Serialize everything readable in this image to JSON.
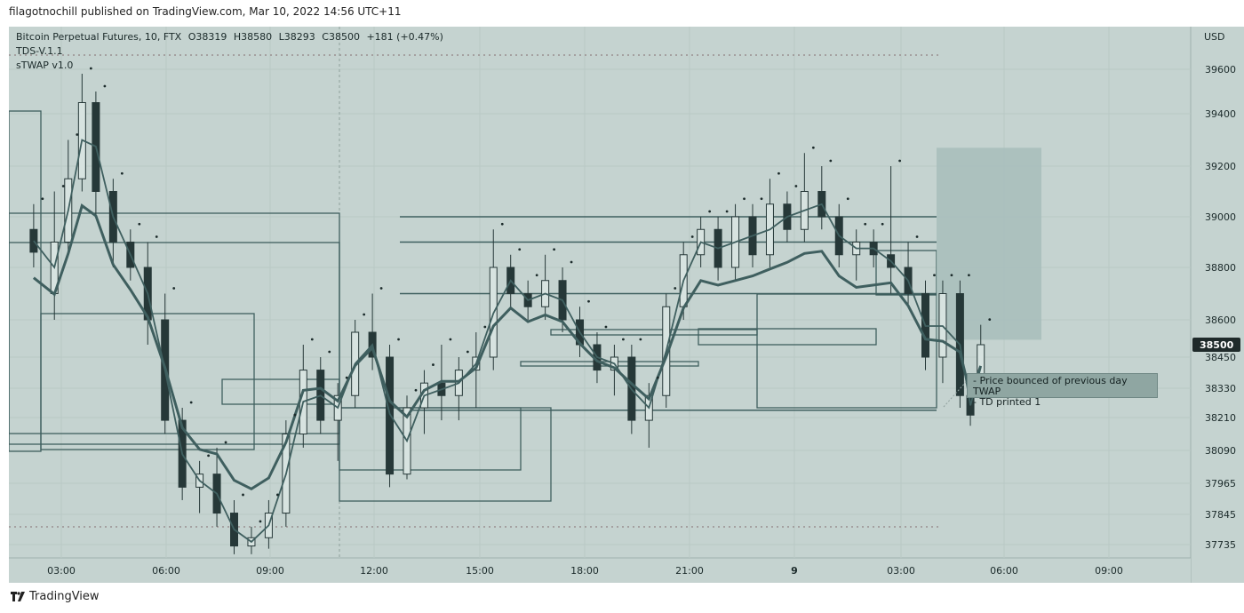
{
  "header": {
    "publisher": "filagotnochill published on TradingView.com, Mar 10, 2022 14:56 UTC+11"
  },
  "legend": {
    "symbol": "Bitcoin Perpetual Futures, 10, FTX",
    "o": "O38319",
    "h": "H38580",
    "l": "L38293",
    "c": "C38500",
    "change": "+181 (+0.47%)",
    "indicator1": "TDS-V.1.1",
    "indicator2": "sTWAP v1.0"
  },
  "price_axis": {
    "currency": "USD",
    "ticks": [
      "39600",
      "39400",
      "39200",
      "39000",
      "38800",
      "38600",
      "38450",
      "38330",
      "38210",
      "38090",
      "37965",
      "37845",
      "37735"
    ],
    "current_price": "38500",
    "current_price_color": "#1f2a2a"
  },
  "time_axis": {
    "ticks": [
      "03:00",
      "06:00",
      "09:00",
      "12:00",
      "15:00",
      "18:00",
      "21:00",
      "9",
      "03:00",
      "06:00",
      "09:00"
    ]
  },
  "annotation": {
    "line1": "- Price bounced of previous day TWAP",
    "line2": "- TD printed 1"
  },
  "footer": {
    "brand": "TradingView"
  },
  "colors": {
    "background": "#c5d3d0",
    "candle": "#263838",
    "twap_line": "#3f5f5f",
    "box_fill": "#a8bfbb"
  },
  "chart_data": {
    "type": "candlestick",
    "interval": "10",
    "ylim": [
      37680,
      39720
    ],
    "x_range_hours": [
      0,
      31
    ],
    "price_scale": "non-linear",
    "candles_approx": [
      {
        "t": 0.2,
        "o": 38950,
        "h": 39050,
        "l": 38800,
        "c": 38860
      },
      {
        "t": 0.8,
        "o": 38700,
        "h": 39100,
        "l": 38600,
        "c": 38900
      },
      {
        "t": 1.2,
        "o": 38900,
        "h": 39300,
        "l": 38850,
        "c": 39150
      },
      {
        "t": 1.6,
        "o": 39150,
        "h": 39580,
        "l": 39100,
        "c": 39450
      },
      {
        "t": 2.0,
        "o": 39450,
        "h": 39500,
        "l": 39000,
        "c": 39100
      },
      {
        "t": 2.5,
        "o": 39100,
        "h": 39150,
        "l": 38800,
        "c": 38900
      },
      {
        "t": 3.0,
        "o": 38900,
        "h": 38950,
        "l": 38750,
        "c": 38800
      },
      {
        "t": 3.5,
        "o": 38800,
        "h": 38900,
        "l": 38500,
        "c": 38600
      },
      {
        "t": 4.0,
        "o": 38600,
        "h": 38700,
        "l": 38150,
        "c": 38200
      },
      {
        "t": 4.5,
        "o": 38200,
        "h": 38250,
        "l": 37900,
        "c": 37950
      },
      {
        "t": 5.0,
        "o": 37950,
        "h": 38050,
        "l": 37850,
        "c": 38000
      },
      {
        "t": 5.5,
        "o": 38000,
        "h": 38100,
        "l": 37800,
        "c": 37850
      },
      {
        "t": 6.0,
        "o": 37850,
        "h": 37900,
        "l": 37700,
        "c": 37730
      },
      {
        "t": 6.5,
        "o": 37730,
        "h": 37800,
        "l": 37700,
        "c": 37760
      },
      {
        "t": 7.0,
        "o": 37760,
        "h": 37900,
        "l": 37720,
        "c": 37850
      },
      {
        "t": 7.5,
        "o": 37850,
        "h": 38200,
        "l": 37800,
        "c": 38150
      },
      {
        "t": 8.0,
        "o": 38150,
        "h": 38500,
        "l": 38100,
        "c": 38400
      },
      {
        "t": 8.5,
        "o": 38400,
        "h": 38450,
        "l": 38150,
        "c": 38200
      },
      {
        "t": 9.0,
        "o": 38200,
        "h": 38350,
        "l": 38050,
        "c": 38300
      },
      {
        "t": 9.5,
        "o": 38300,
        "h": 38600,
        "l": 38250,
        "c": 38550
      },
      {
        "t": 10.0,
        "o": 38550,
        "h": 38700,
        "l": 38400,
        "c": 38450
      },
      {
        "t": 10.5,
        "o": 38450,
        "h": 38500,
        "l": 37950,
        "c": 38000
      },
      {
        "t": 11.0,
        "o": 38000,
        "h": 38300,
        "l": 37980,
        "c": 38250
      },
      {
        "t": 11.5,
        "o": 38250,
        "h": 38400,
        "l": 38150,
        "c": 38350
      },
      {
        "t": 12.0,
        "o": 38350,
        "h": 38500,
        "l": 38200,
        "c": 38300
      },
      {
        "t": 12.5,
        "o": 38300,
        "h": 38450,
        "l": 38200,
        "c": 38400
      },
      {
        "t": 13.0,
        "o": 38400,
        "h": 38550,
        "l": 38250,
        "c": 38450
      },
      {
        "t": 13.5,
        "o": 38450,
        "h": 38950,
        "l": 38400,
        "c": 38800
      },
      {
        "t": 14.0,
        "o": 38800,
        "h": 38850,
        "l": 38650,
        "c": 38700
      },
      {
        "t": 14.5,
        "o": 38700,
        "h": 38750,
        "l": 38600,
        "c": 38650
      },
      {
        "t": 15.0,
        "o": 38650,
        "h": 38850,
        "l": 38600,
        "c": 38750
      },
      {
        "t": 15.5,
        "o": 38750,
        "h": 38800,
        "l": 38550,
        "c": 38600
      },
      {
        "t": 16.0,
        "o": 38600,
        "h": 38650,
        "l": 38450,
        "c": 38500
      },
      {
        "t": 16.5,
        "o": 38500,
        "h": 38550,
        "l": 38350,
        "c": 38400
      },
      {
        "t": 17.0,
        "o": 38400,
        "h": 38500,
        "l": 38300,
        "c": 38450
      },
      {
        "t": 17.5,
        "o": 38450,
        "h": 38500,
        "l": 38150,
        "c": 38200
      },
      {
        "t": 18.0,
        "o": 38200,
        "h": 38350,
        "l": 38100,
        "c": 38300
      },
      {
        "t": 18.5,
        "o": 38300,
        "h": 38700,
        "l": 38250,
        "c": 38650
      },
      {
        "t": 19.0,
        "o": 38650,
        "h": 38900,
        "l": 38600,
        "c": 38850
      },
      {
        "t": 19.5,
        "o": 38850,
        "h": 39000,
        "l": 38800,
        "c": 38950
      },
      {
        "t": 20.0,
        "o": 38950,
        "h": 39000,
        "l": 38750,
        "c": 38800
      },
      {
        "t": 20.5,
        "o": 38800,
        "h": 39050,
        "l": 38750,
        "c": 39000
      },
      {
        "t": 21.0,
        "o": 39000,
        "h": 39050,
        "l": 38800,
        "c": 38850
      },
      {
        "t": 21.5,
        "o": 38850,
        "h": 39150,
        "l": 38800,
        "c": 39050
      },
      {
        "t": 22.0,
        "o": 39050,
        "h": 39100,
        "l": 38900,
        "c": 38950
      },
      {
        "t": 22.5,
        "o": 38950,
        "h": 39250,
        "l": 38900,
        "c": 39100
      },
      {
        "t": 23.0,
        "o": 39100,
        "h": 39200,
        "l": 38950,
        "c": 39000
      },
      {
        "t": 23.5,
        "o": 39000,
        "h": 39050,
        "l": 38800,
        "c": 38850
      },
      {
        "t": 24.0,
        "o": 38850,
        "h": 38950,
        "l": 38750,
        "c": 38900
      },
      {
        "t": 24.5,
        "o": 38900,
        "h": 38950,
        "l": 38800,
        "c": 38850
      },
      {
        "t": 25.0,
        "o": 38850,
        "h": 39200,
        "l": 38700,
        "c": 38800
      },
      {
        "t": 25.5,
        "o": 38800,
        "h": 38900,
        "l": 38650,
        "c": 38700
      },
      {
        "t": 26.0,
        "o": 38700,
        "h": 38750,
        "l": 38400,
        "c": 38450
      },
      {
        "t": 26.5,
        "o": 38450,
        "h": 38750,
        "l": 38350,
        "c": 38700
      },
      {
        "t": 27.0,
        "o": 38700,
        "h": 38750,
        "l": 38250,
        "c": 38300
      },
      {
        "t": 27.3,
        "o": 38300,
        "h": 38350,
        "l": 38180,
        "c": 38220
      },
      {
        "t": 27.6,
        "o": 38319,
        "h": 38580,
        "l": 38293,
        "c": 38500
      }
    ],
    "horizontal_levels": [
      {
        "price": 38240
      },
      {
        "price": 38700
      },
      {
        "price": 39000
      },
      {
        "price": 38900
      }
    ],
    "target_box": {
      "price_top": 39270,
      "price_bottom": 38520,
      "t_start": 29.2,
      "t_end": 32.2
    }
  }
}
